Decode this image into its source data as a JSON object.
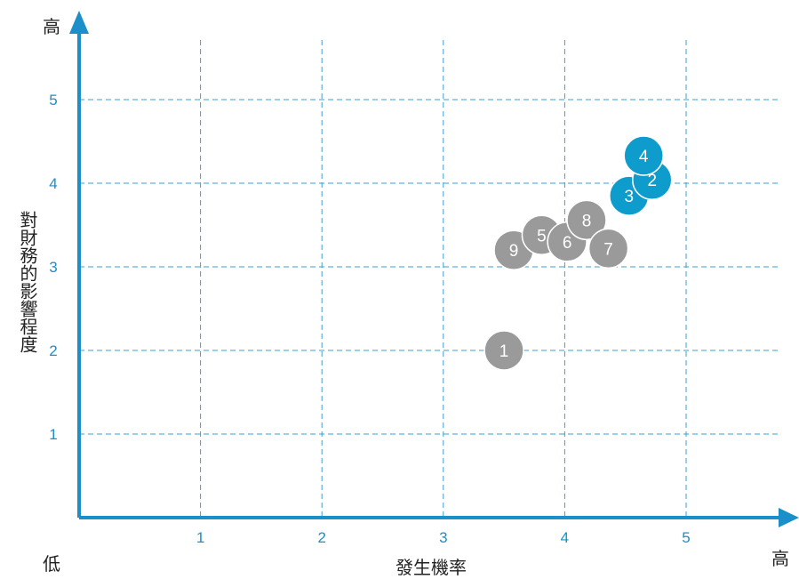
{
  "corner_labels": {
    "y_high": "高",
    "x_high": "高",
    "origin_low": "低"
  },
  "chart_data": {
    "type": "scatter",
    "xlabel": "發生機率",
    "ylabel": "對財務的影響程度",
    "xlim": [
      0,
      5.8
    ],
    "ylim": [
      0,
      5.8
    ],
    "xticks": [
      1,
      2,
      3,
      4,
      5
    ],
    "yticks": [
      1,
      2,
      3,
      4,
      5
    ],
    "grid": true,
    "grid_style": "dashed",
    "points": [
      {
        "label": "1",
        "x": 3.5,
        "y": 2.0,
        "group": "gray"
      },
      {
        "label": "9",
        "x": 3.58,
        "y": 3.2,
        "group": "gray"
      },
      {
        "label": "5",
        "x": 3.81,
        "y": 3.38,
        "group": "gray"
      },
      {
        "label": "6",
        "x": 4.02,
        "y": 3.3,
        "group": "gray"
      },
      {
        "label": "8",
        "x": 4.18,
        "y": 3.56,
        "group": "gray"
      },
      {
        "label": "7",
        "x": 4.36,
        "y": 3.22,
        "group": "gray"
      },
      {
        "label": "3",
        "x": 4.53,
        "y": 3.85,
        "group": "blue"
      },
      {
        "label": "2",
        "x": 4.72,
        "y": 4.04,
        "group": "blue"
      },
      {
        "label": "4",
        "x": 4.65,
        "y": 4.33,
        "group": "blue"
      }
    ],
    "colors": {
      "axis": "#1a8fc9",
      "grid": "#3a9fd0",
      "tick_label": "#1a8fc9",
      "gray": "#9a9a9a",
      "blue": "#0e9ccc",
      "marker_text": "#ffffff"
    }
  }
}
